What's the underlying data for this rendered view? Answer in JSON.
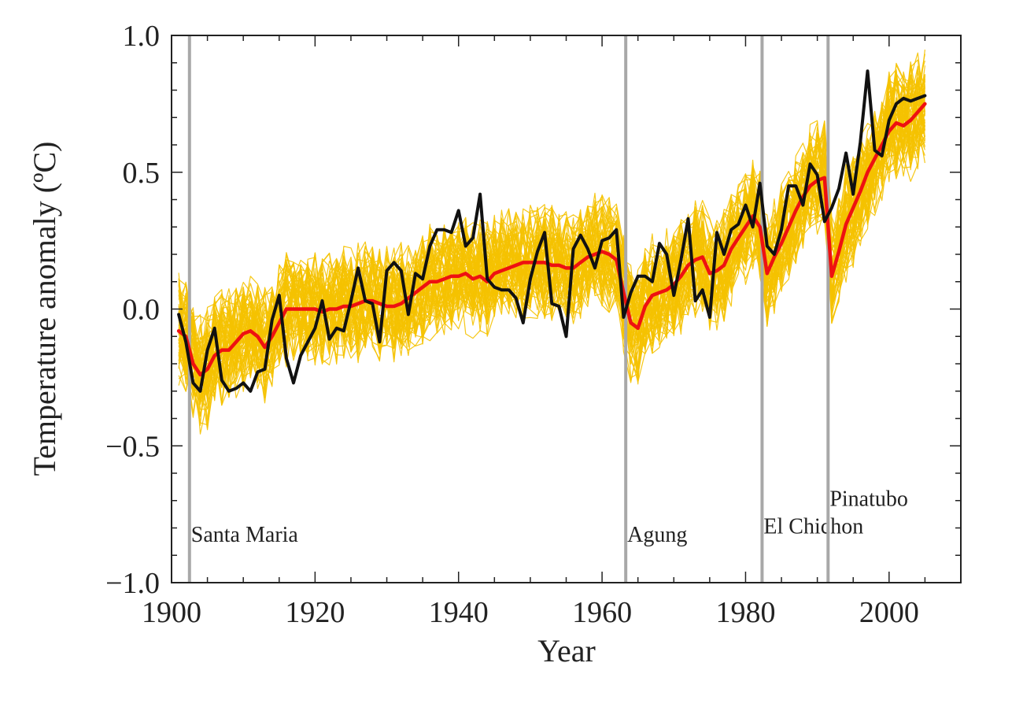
{
  "chart_data": {
    "type": "line",
    "xlabel": "Year",
    "ylabel": "Temperature anomaly (ºC)",
    "xlim": [
      1900,
      2010
    ],
    "ylim": [
      -1.0,
      1.0
    ],
    "x_ticks": [
      1900,
      1920,
      1940,
      1960,
      1980,
      2000
    ],
    "y_ticks": [
      {
        "value": 1.0,
        "label": "1.0"
      },
      {
        "value": 0.5,
        "label": "0.5"
      },
      {
        "value": 0.0,
        "label": "0.0"
      },
      {
        "value": -0.5,
        "label": "−0.5"
      },
      {
        "value": -1.0,
        "label": "−1.0"
      }
    ],
    "series": [
      {
        "role": "observations",
        "color": "#111111",
        "x": [
          1901,
          1902,
          1903,
          1904,
          1905,
          1906,
          1907,
          1908,
          1909,
          1910,
          1911,
          1912,
          1913,
          1914,
          1915,
          1916,
          1917,
          1918,
          1919,
          1920,
          1921,
          1922,
          1923,
          1924,
          1925,
          1926,
          1927,
          1928,
          1929,
          1930,
          1931,
          1932,
          1933,
          1934,
          1935,
          1936,
          1937,
          1938,
          1939,
          1940,
          1941,
          1942,
          1943,
          1944,
          1945,
          1946,
          1947,
          1948,
          1949,
          1950,
          1951,
          1952,
          1953,
          1954,
          1955,
          1956,
          1957,
          1958,
          1959,
          1960,
          1961,
          1962,
          1963,
          1964,
          1965,
          1966,
          1967,
          1968,
          1969,
          1970,
          1971,
          1972,
          1973,
          1974,
          1975,
          1976,
          1977,
          1978,
          1979,
          1980,
          1981,
          1982,
          1983,
          1984,
          1985,
          1986,
          1987,
          1988,
          1989,
          1990,
          1991,
          1992,
          1993,
          1994,
          1995,
          1996,
          1997,
          1998,
          1999,
          2000,
          2001,
          2002,
          2003,
          2004,
          2005
        ],
        "values": [
          -0.02,
          -0.12,
          -0.27,
          -0.3,
          -0.15,
          -0.07,
          -0.26,
          -0.3,
          -0.29,
          -0.27,
          -0.3,
          -0.23,
          -0.22,
          -0.04,
          0.05,
          -0.18,
          -0.27,
          -0.17,
          -0.12,
          -0.07,
          0.03,
          -0.11,
          -0.07,
          -0.08,
          0.03,
          0.15,
          0.03,
          0.02,
          -0.12,
          0.14,
          0.17,
          0.14,
          -0.02,
          0.13,
          0.11,
          0.23,
          0.29,
          0.29,
          0.28,
          0.36,
          0.23,
          0.26,
          0.42,
          0.11,
          0.08,
          0.07,
          0.07,
          0.04,
          -0.05,
          0.11,
          0.21,
          0.28,
          0.02,
          0.01,
          -0.1,
          0.22,
          0.27,
          0.22,
          0.15,
          0.25,
          0.26,
          0.29,
          -0.03,
          0.06,
          0.12,
          0.12,
          0.1,
          0.24,
          0.2,
          0.05,
          0.18,
          0.33,
          0.03,
          0.07,
          -0.03,
          0.28,
          0.2,
          0.29,
          0.31,
          0.38,
          0.3,
          0.46,
          0.23,
          0.2,
          0.29,
          0.45,
          0.45,
          0.38,
          0.53,
          0.49,
          0.32,
          0.37,
          0.44,
          0.57,
          0.42,
          0.61,
          0.87,
          0.58,
          0.56,
          0.69,
          0.75,
          0.77,
          0.76,
          0.77,
          0.78
        ]
      },
      {
        "role": "model-ensemble-mean",
        "color": "#ee1111",
        "x": [
          1901,
          1902,
          1903,
          1904,
          1905,
          1906,
          1907,
          1908,
          1909,
          1910,
          1911,
          1912,
          1913,
          1914,
          1915,
          1916,
          1917,
          1918,
          1919,
          1920,
          1921,
          1922,
          1923,
          1924,
          1925,
          1926,
          1927,
          1928,
          1929,
          1930,
          1931,
          1932,
          1933,
          1934,
          1935,
          1936,
          1937,
          1938,
          1939,
          1940,
          1941,
          1942,
          1943,
          1944,
          1945,
          1946,
          1947,
          1948,
          1949,
          1950,
          1951,
          1952,
          1953,
          1954,
          1955,
          1956,
          1957,
          1958,
          1959,
          1960,
          1961,
          1962,
          1963,
          1964,
          1965,
          1966,
          1967,
          1968,
          1969,
          1970,
          1971,
          1972,
          1973,
          1974,
          1975,
          1976,
          1977,
          1978,
          1979,
          1980,
          1981,
          1982,
          1983,
          1984,
          1985,
          1986,
          1987,
          1988,
          1989,
          1990,
          1991,
          1992,
          1993,
          1994,
          1995,
          1996,
          1997,
          1998,
          1999,
          2000,
          2001,
          2002,
          2003,
          2004,
          2005
        ],
        "values": [
          -0.08,
          -0.1,
          -0.2,
          -0.24,
          -0.22,
          -0.17,
          -0.15,
          -0.15,
          -0.12,
          -0.09,
          -0.08,
          -0.1,
          -0.14,
          -0.1,
          -0.05,
          0.0,
          0.0,
          0.0,
          0.0,
          0.0,
          -0.01,
          0.0,
          0.0,
          0.01,
          0.01,
          0.02,
          0.03,
          0.03,
          0.02,
          0.01,
          0.01,
          0.02,
          0.04,
          0.06,
          0.08,
          0.1,
          0.1,
          0.11,
          0.12,
          0.12,
          0.13,
          0.11,
          0.12,
          0.1,
          0.13,
          0.14,
          0.15,
          0.16,
          0.17,
          0.17,
          0.17,
          0.17,
          0.16,
          0.16,
          0.15,
          0.15,
          0.17,
          0.19,
          0.2,
          0.21,
          0.2,
          0.18,
          0.06,
          -0.05,
          -0.07,
          0.01,
          0.05,
          0.06,
          0.07,
          0.09,
          0.12,
          0.16,
          0.18,
          0.19,
          0.13,
          0.14,
          0.16,
          0.22,
          0.26,
          0.3,
          0.34,
          0.3,
          0.13,
          0.19,
          0.24,
          0.3,
          0.36,
          0.41,
          0.45,
          0.47,
          0.48,
          0.12,
          0.21,
          0.31,
          0.37,
          0.43,
          0.5,
          0.55,
          0.6,
          0.65,
          0.68,
          0.67,
          0.69,
          0.72,
          0.75
        ]
      }
    ],
    "ensemble": {
      "color": "#f5c200",
      "members": 58
    },
    "volcanoes": [
      {
        "year": 1902.5,
        "label": "Santa Maria",
        "label_y": -0.85
      },
      {
        "year": 1963.3,
        "label": "Agung",
        "label_y": -0.85
      },
      {
        "year": 1982.3,
        "label": "El Chichon",
        "label_y": -0.82
      },
      {
        "year": 1991.5,
        "label": "Pinatubo",
        "label_y": -0.72
      }
    ]
  }
}
